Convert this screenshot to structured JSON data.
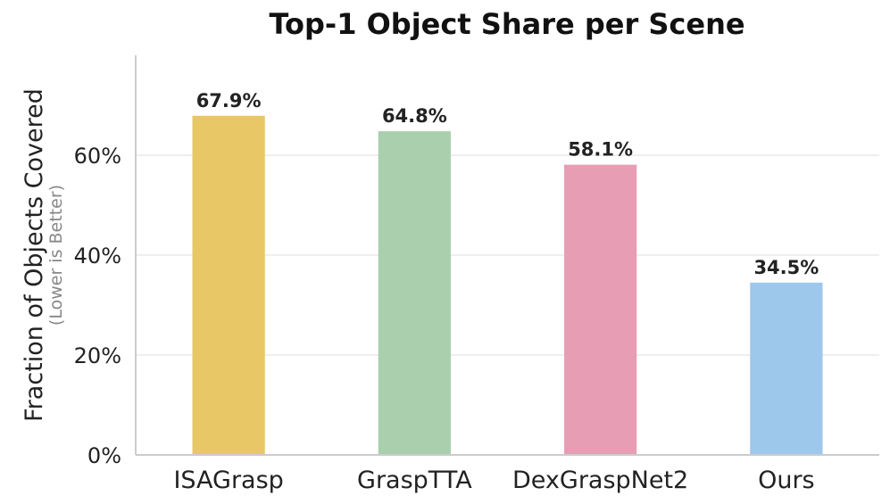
{
  "chart_data": {
    "type": "bar",
    "title": "Top-1 Object Share per Scene",
    "ylabel": "Fraction of Objects Covered",
    "ylabel_note": "(Lower is Better)",
    "xlabel": "",
    "categories": [
      "ISAGrasp",
      "GraspTTA",
      "DexGraspNet2",
      "Ours"
    ],
    "values": [
      67.9,
      64.8,
      58.1,
      34.5
    ],
    "data_labels": [
      "67.9%",
      "64.8%",
      "58.1%",
      "34.5%"
    ],
    "colors": [
      "#e8c766",
      "#aacfad",
      "#e79db3",
      "#9dc8eb"
    ],
    "ylim": [
      0,
      80
    ],
    "yticks": [
      0,
      20,
      40,
      60
    ],
    "ytick_labels": [
      "0%",
      "20%",
      "40%",
      "60%"
    ],
    "grid": "horizontal",
    "legend": "none"
  }
}
